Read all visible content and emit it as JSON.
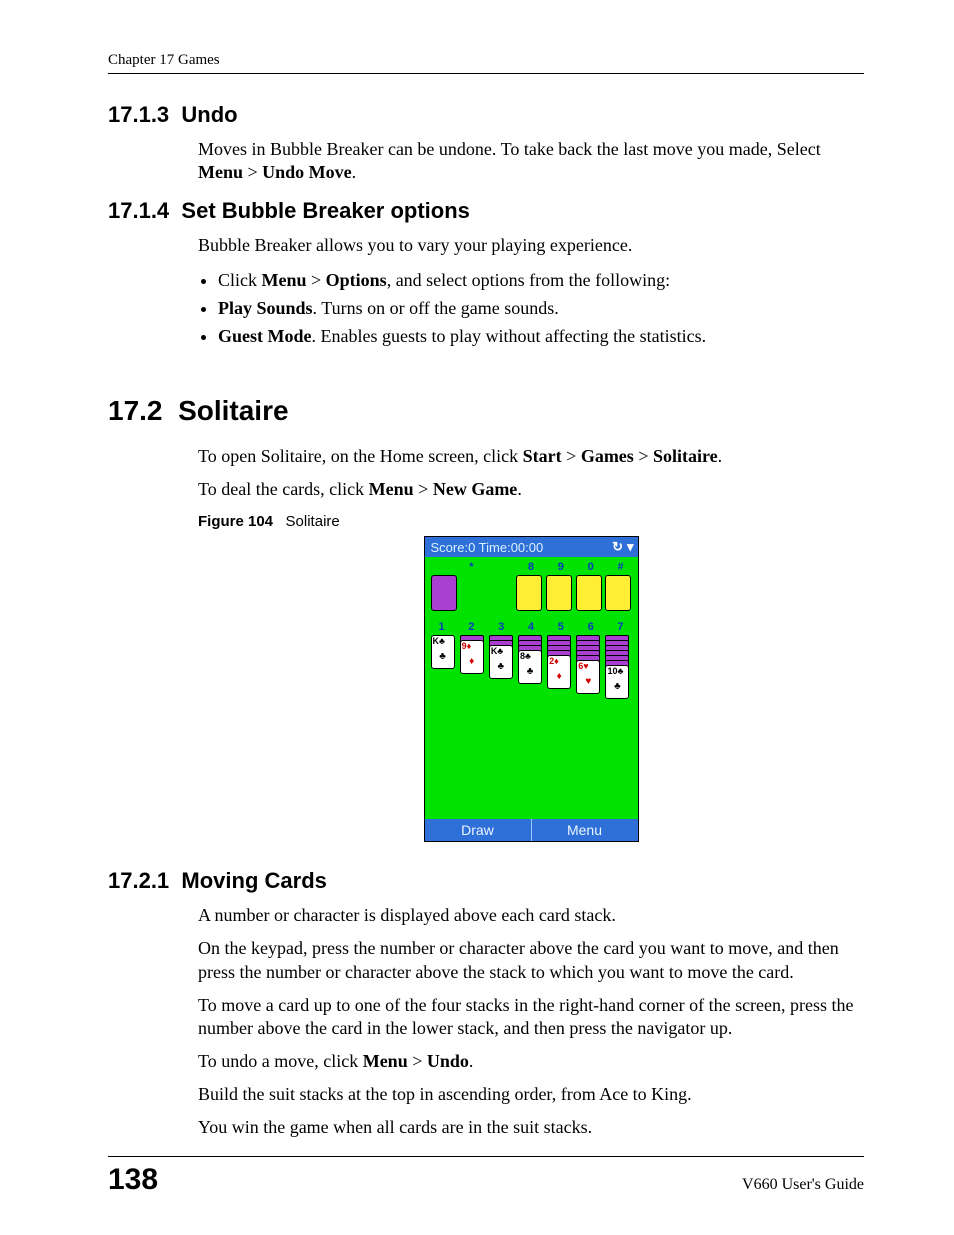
{
  "header": {
    "running": "Chapter 17 Games"
  },
  "s1": {
    "num": "17.1.3",
    "title": "Undo",
    "p1a": "Moves in Bubble Breaker can be undone. To take back the last move you made, Select ",
    "p1b": "Menu",
    "p1c": " > ",
    "p1d": "Undo Move",
    "p1e": "."
  },
  "s2": {
    "num": "17.1.4",
    "title": "Set Bubble Breaker options",
    "p1": "Bubble Breaker allows you to vary your playing experience.",
    "li1a": "Click ",
    "li1b": "Menu",
    "li1c": " > ",
    "li1d": "Options",
    "li1e": ", and select options from the following:",
    "li2a": "Play Sounds",
    "li2b": ". Turns on or off the game sounds.",
    "li3a": "Guest Mode",
    "li3b": ". Enables guests to play without affecting the statistics."
  },
  "s3": {
    "num": "17.2",
    "title": "Solitaire",
    "p1a": "To open Solitaire, on the Home screen, click ",
    "p1b": "Start",
    "p1c": " > ",
    "p1d": "Games",
    "p1e": " > ",
    "p1f": "Solitaire",
    "p1g": ".",
    "p2a": "To deal the cards, click ",
    "p2b": "Menu",
    "p2c": " > ",
    "p2d": "New Game",
    "p2e": "."
  },
  "figure": {
    "label": "Figure 104",
    "caption": "Solitaire"
  },
  "game": {
    "background": "#00e200",
    "bar_color": "#2f6fd8",
    "bar_text_color": "#d8f3ff",
    "deck_color": "#a83fd0",
    "foundation_color": "#ffee33",
    "top_status": "Score:0 Time:00:00",
    "top_icons": {
      "a": "↻",
      "b": "▾"
    },
    "top_nums": [
      "",
      "*",
      "",
      "8",
      "9",
      "0",
      "#"
    ],
    "col_nums": [
      "1",
      "2",
      "3",
      "4",
      "5",
      "6",
      "7"
    ],
    "cards": [
      {
        "rank": "K",
        "suit": "♣",
        "color": "blk",
        "hidden": 0
      },
      {
        "rank": "9",
        "suit": "♦",
        "color": "red",
        "hidden": 1
      },
      {
        "rank": "K",
        "suit": "♣",
        "color": "blk",
        "hidden": 2
      },
      {
        "rank": "8",
        "suit": "♣",
        "color": "blk",
        "hidden": 3
      },
      {
        "rank": "2",
        "suit": "♦",
        "color": "red",
        "hidden": 4
      },
      {
        "rank": "6",
        "suit": "♥",
        "color": "red",
        "hidden": 5
      },
      {
        "rank": "10",
        "suit": "♣",
        "color": "blk",
        "hidden": 6
      }
    ],
    "bottom": {
      "left": "Draw",
      "right": "Menu"
    }
  },
  "s4": {
    "num": "17.2.1",
    "title": "Moving Cards",
    "p1": "A number or character is displayed above each card stack.",
    "p2": "On the keypad, press the number or character above the card you want to move, and then press the number or character above the stack to which you want to move the card.",
    "p3": "To move a card up to one of the four stacks in the right-hand corner of the screen, press the number above the card in the lower stack, and then press the navigator up.",
    "p4a": "To undo a move, click ",
    "p4b": "Menu",
    "p4c": " > ",
    "p4d": "Undo",
    "p4e": ".",
    "p5": "Build the suit stacks at the top in ascending order, from Ace to King.",
    "p6": "You win the game when all cards are in the suit stacks."
  },
  "footer": {
    "page": "138",
    "guide": "V660 User's Guide"
  }
}
